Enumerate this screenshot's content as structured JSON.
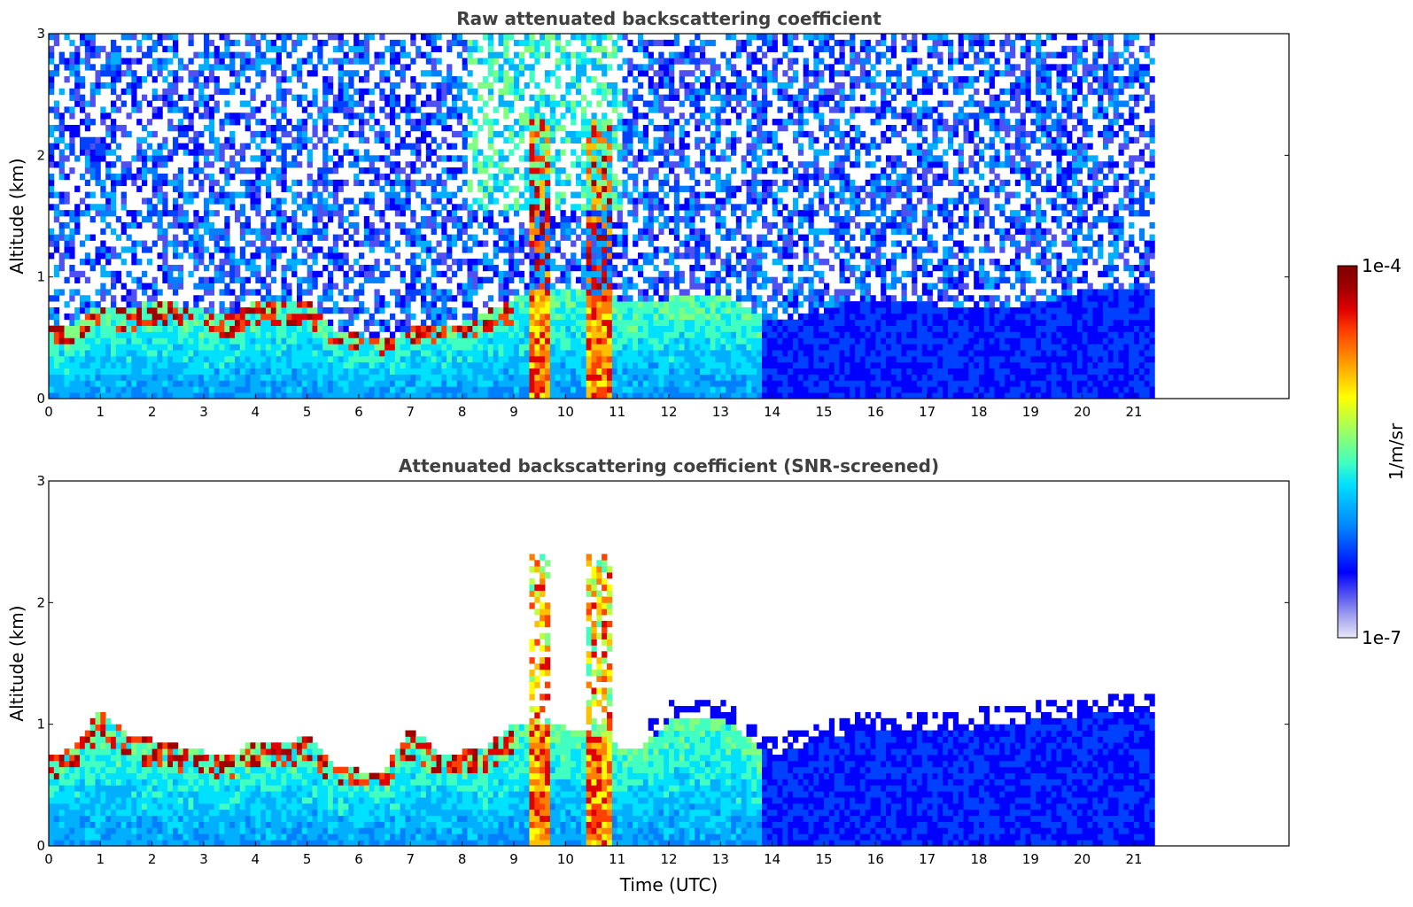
{
  "chart_data": [
    {
      "type": "heatmap",
      "title": "Raw attenuated backscattering coefficient",
      "xlabel": "",
      "ylabel": "Altitude (km)",
      "xlim": [
        0,
        24
      ],
      "ylim": [
        0,
        3
      ],
      "x_ticks": [
        "0",
        "1",
        "2",
        "3",
        "4",
        "5",
        "6",
        "7",
        "8",
        "9",
        "10",
        "11",
        "12",
        "13",
        "14",
        "15",
        "16",
        "17",
        "18",
        "19",
        "20",
        "21"
      ],
      "y_ticks": [
        "0",
        "1",
        "2",
        "3"
      ],
      "data_extent_x": [
        0,
        21.4
      ],
      "boundary_layer_top_km": [
        [
          0,
          0.55
        ],
        [
          0.5,
          0.6
        ],
        [
          1,
          0.75
        ],
        [
          1.5,
          0.7
        ],
        [
          2,
          0.8
        ],
        [
          2.5,
          0.75
        ],
        [
          3,
          0.7
        ],
        [
          3.5,
          0.65
        ],
        [
          4,
          0.78
        ],
        [
          4.5,
          0.75
        ],
        [
          5,
          0.8
        ],
        [
          5.5,
          0.55
        ],
        [
          6,
          0.5
        ],
        [
          6.5,
          0.45
        ],
        [
          7,
          0.55
        ],
        [
          7.5,
          0.6
        ],
        [
          8,
          0.6
        ],
        [
          8.5,
          0.7
        ],
        [
          9,
          0.8
        ],
        [
          9.5,
          0.9
        ],
        [
          10,
          0.9
        ],
        [
          10.5,
          0.85
        ],
        [
          11,
          0.8
        ],
        [
          11.5,
          0.75
        ],
        [
          12,
          0.8
        ],
        [
          13,
          0.85
        ],
        [
          14,
          0.6
        ],
        [
          15,
          0.7
        ],
        [
          16,
          0.8
        ],
        [
          17,
          0.75
        ],
        [
          18,
          0.7
        ],
        [
          19,
          0.75
        ],
        [
          20,
          0.85
        ],
        [
          21,
          0.9
        ],
        [
          21.4,
          0.9
        ]
      ]
    },
    {
      "type": "heatmap",
      "title": "Attenuated backscattering coefficient (SNR-screened)",
      "xlabel": "Time (UTC)",
      "ylabel": "Altitude (km)",
      "xlim": [
        0,
        24
      ],
      "ylim": [
        0,
        3
      ],
      "x_ticks": [
        "0",
        "1",
        "2",
        "3",
        "4",
        "5",
        "6",
        "7",
        "8",
        "9",
        "10",
        "11",
        "12",
        "13",
        "14",
        "15",
        "16",
        "17",
        "18",
        "19",
        "20",
        "21"
      ],
      "y_ticks": [
        "0",
        "1",
        "2",
        "3"
      ],
      "data_extent_x": [
        0,
        21.4
      ],
      "signal_top_km": [
        [
          0,
          0.7
        ],
        [
          0.5,
          0.8
        ],
        [
          1,
          1.1
        ],
        [
          1.5,
          0.9
        ],
        [
          2,
          0.85
        ],
        [
          2.5,
          0.8
        ],
        [
          3,
          0.75
        ],
        [
          3.5,
          0.7
        ],
        [
          4,
          0.85
        ],
        [
          4.5,
          0.8
        ],
        [
          5,
          0.9
        ],
        [
          5.5,
          0.65
        ],
        [
          6,
          0.6
        ],
        [
          6.5,
          0.6
        ],
        [
          7,
          0.95
        ],
        [
          7.5,
          0.75
        ],
        [
          8,
          0.75
        ],
        [
          8.5,
          0.8
        ],
        [
          9,
          1.0
        ],
        [
          9.5,
          1.0
        ],
        [
          10,
          0.95
        ],
        [
          10.5,
          0.9
        ],
        [
          11,
          0.8
        ],
        [
          11.5,
          0.8
        ],
        [
          12,
          1.0
        ],
        [
          13,
          1.05
        ],
        [
          14,
          0.7
        ],
        [
          15,
          0.85
        ],
        [
          16,
          0.95
        ],
        [
          17,
          0.9
        ],
        [
          18,
          0.95
        ],
        [
          19,
          1.0
        ],
        [
          20,
          1.05
        ],
        [
          21,
          1.1
        ],
        [
          21.4,
          1.1
        ]
      ]
    }
  ],
  "colorbar": {
    "max_label": "1e-4",
    "min_label": "1e-7",
    "units_label": "1/m/sr",
    "colors": [
      "#e8e8f8",
      "#a0a0f0",
      "#5050f0",
      "#0000ff",
      "#0040ff",
      "#0080ff",
      "#00b0ff",
      "#00e0ff",
      "#40ffc0",
      "#80ff80",
      "#c0ff40",
      "#ffff00",
      "#ffc000",
      "#ff8000",
      "#ff4000",
      "#e00000",
      "#a00000",
      "#800000"
    ]
  }
}
